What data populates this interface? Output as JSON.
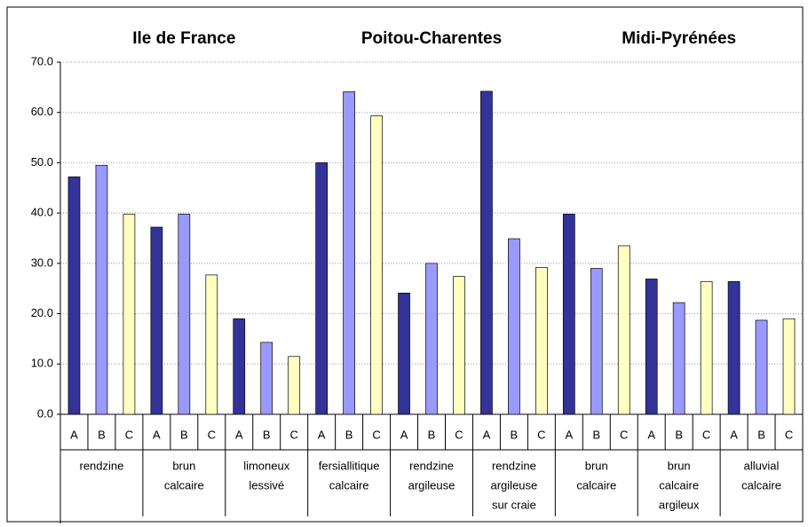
{
  "chart_data": {
    "type": "bar",
    "regions": [
      "Ile de France",
      "Poitou-Charentes",
      "Midi-Pyrénées"
    ],
    "categories": [
      [
        "rendzine"
      ],
      [
        "brun",
        "calcaire"
      ],
      [
        "limoneux",
        "lessivé"
      ],
      [
        "fersiallitique",
        "calcaire"
      ],
      [
        "rendzine",
        "argileuse"
      ],
      [
        "rendzine",
        "argileuse",
        "sur craie"
      ],
      [
        "brun",
        "calcaire"
      ],
      [
        "brun",
        "calcaire",
        "argileux"
      ],
      [
        "alluvial",
        "calcaire"
      ]
    ],
    "series": [
      {
        "name": "A",
        "color": "#333399",
        "values": [
          47.2,
          37.2,
          19.0,
          50.0,
          24.1,
          64.2,
          39.8,
          26.9,
          26.4
        ]
      },
      {
        "name": "B",
        "color": "#9999ff",
        "values": [
          49.5,
          39.8,
          14.3,
          64.1,
          30.0,
          34.9,
          29.0,
          22.2,
          18.7
        ]
      },
      {
        "name": "C",
        "color": "#ffffc0",
        "values": [
          39.8,
          27.7,
          11.5,
          59.3,
          27.4,
          29.2,
          33.5,
          26.4,
          19.0
        ]
      }
    ],
    "ylim": [
      0,
      70
    ],
    "yticks": [
      {
        "value": 0,
        "label": "0.0"
      },
      {
        "value": 10,
        "label": "10.0"
      },
      {
        "value": 20,
        "label": "20.0"
      },
      {
        "value": 30,
        "label": "30.0"
      },
      {
        "value": 40,
        "label": "40.0"
      },
      {
        "value": 50,
        "label": "50.0"
      },
      {
        "value": 60,
        "label": "60.0"
      },
      {
        "value": 70,
        "label": "70.0"
      }
    ],
    "grid": true
  }
}
